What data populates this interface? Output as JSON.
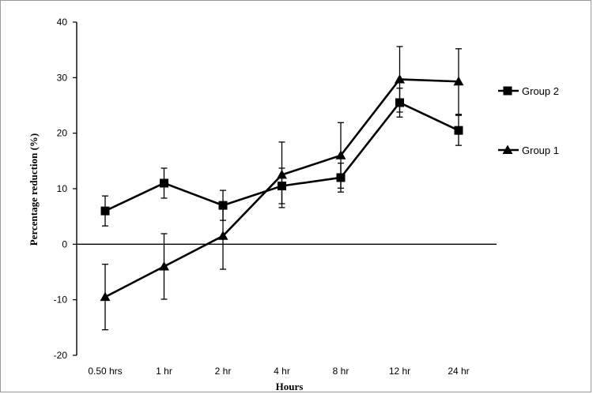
{
  "chart_data": {
    "type": "line",
    "title": "",
    "xlabel": "Hours",
    "ylabel": "Percentage reduction (%)",
    "categories": [
      "0.50 hrs",
      "1 hr",
      "2 hr",
      "4 hr",
      "8 hr",
      "12 hr",
      "24 hr"
    ],
    "ylim": [
      -20,
      40
    ],
    "yticks": [
      -20,
      -10,
      0,
      10,
      20,
      30,
      40
    ],
    "grid": false,
    "legend_position": "right",
    "series": [
      {
        "name": "Group 2",
        "marker": "square",
        "values": [
          6,
          11,
          7,
          10.5,
          12,
          25.5,
          20.5
        ],
        "error": [
          2.7,
          2.7,
          2.7,
          3.2,
          2.6,
          2.6,
          2.7
        ],
        "color": "#000000"
      },
      {
        "name": "Group 1",
        "marker": "triangle",
        "values": [
          -9.5,
          -4,
          1.5,
          12.5,
          16,
          29.7,
          29.3
        ],
        "error": [
          5.9,
          5.9,
          6.0,
          5.9,
          5.9,
          5.9,
          5.9
        ],
        "color": "#000000"
      }
    ]
  }
}
